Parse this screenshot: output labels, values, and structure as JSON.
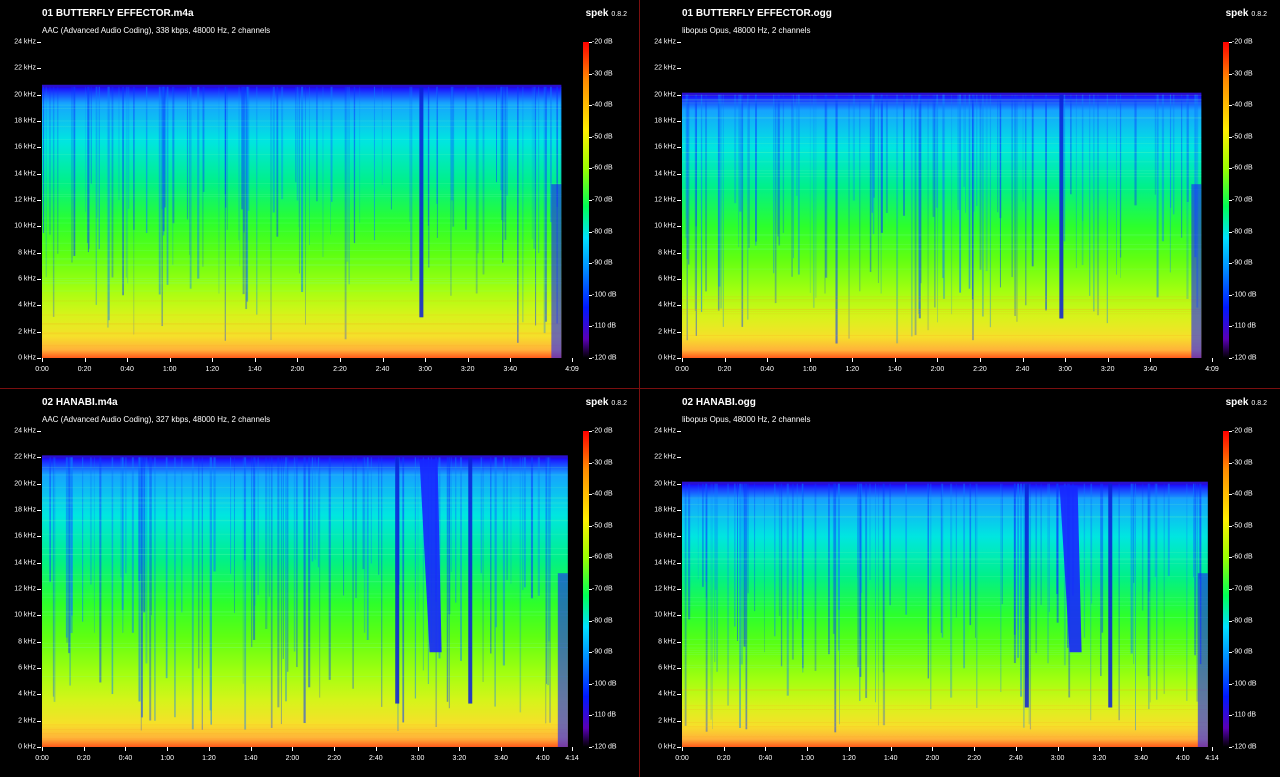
{
  "colors": {
    "background": "#000000",
    "divider": "#7a0f0f",
    "text": "#ffffff"
  },
  "app": {
    "brand": "spek",
    "version": "0.8.2"
  },
  "axes": {
    "y_labels": [
      "24 kHz",
      "22 kHz",
      "20 kHz",
      "18 kHz",
      "16 kHz",
      "14 kHz",
      "12 kHz",
      "10 kHz",
      "8 kHz",
      "6 kHz",
      "4 kHz",
      "2 kHz",
      "0 kHz"
    ],
    "db_labels": [
      "-20 dB",
      "-30 dB",
      "-40 dB",
      "-50 dB",
      "-60 dB",
      "-70 dB",
      "-80 dB",
      "-90 dB",
      "-100 dB",
      "-110 dB",
      "-120 dB"
    ]
  },
  "panels": [
    {
      "title": "01 BUTTERFLY EFFECTOR.m4a",
      "subtitle": "AAC (Advanced Audio Coding), 338 kbps, 48000 Hz, 2 channels",
      "x_labels": [
        "0:00",
        "0:20",
        "0:40",
        "1:00",
        "1:20",
        "1:40",
        "2:00",
        "2:20",
        "2:40",
        "3:00",
        "3:20",
        "3:40",
        "4:09"
      ],
      "duration_s": 249,
      "cutoff_khz": 20.6,
      "end_s": 244,
      "dip_s": [
        178
      ],
      "notch": false
    },
    {
      "title": "01 BUTTERFLY EFFECTOR.ogg",
      "subtitle": "libopus Opus, 48000 Hz, 2 channels",
      "x_labels": [
        "0:00",
        "0:20",
        "0:40",
        "1:00",
        "1:20",
        "1:40",
        "2:00",
        "2:20",
        "2:40",
        "3:00",
        "3:20",
        "3:40",
        "4:09"
      ],
      "duration_s": 249,
      "cutoff_khz": 20.0,
      "end_s": 244,
      "dip_s": [
        178
      ],
      "notch": false
    },
    {
      "title": "02 HANABI.m4a",
      "subtitle": "AAC (Advanced Audio Coding), 327 kbps, 48000 Hz, 2 channels",
      "x_labels": [
        "0:00",
        "0:20",
        "0:40",
        "1:00",
        "1:20",
        "1:40",
        "2:00",
        "2:20",
        "2:40",
        "3:00",
        "3:20",
        "3:40",
        "4:00",
        "4:14"
      ],
      "duration_s": 254,
      "cutoff_khz": 22.0,
      "end_s": 252,
      "dip_s": [
        170,
        205
      ],
      "notch": true
    },
    {
      "title": "02 HANABI.ogg",
      "subtitle": "libopus Opus, 48000 Hz, 2 channels",
      "x_labels": [
        "0:00",
        "0:20",
        "0:40",
        "1:00",
        "1:20",
        "1:40",
        "2:00",
        "2:20",
        "2:40",
        "3:00",
        "3:20",
        "3:40",
        "4:00",
        "4:14"
      ],
      "duration_s": 254,
      "cutoff_khz": 20.0,
      "end_s": 252,
      "dip_s": [
        165,
        205
      ],
      "notch": true
    }
  ]
}
